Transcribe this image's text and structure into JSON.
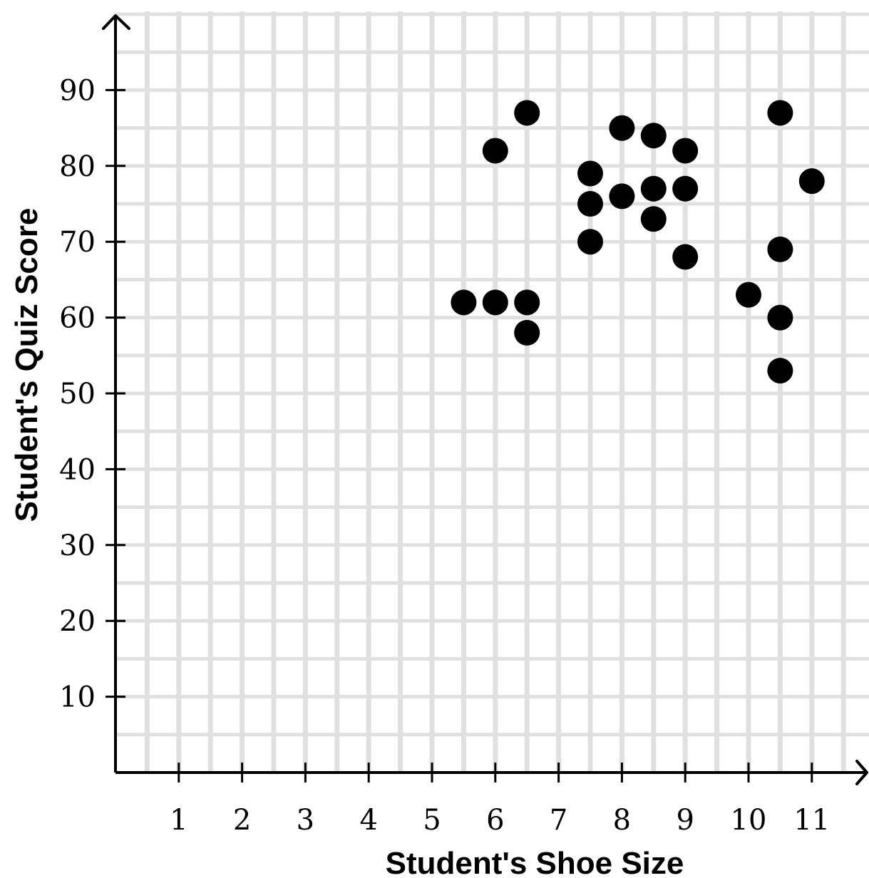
{
  "chart_data": {
    "type": "scatter",
    "title": "",
    "xlabel": "Student's Shoe Size",
    "ylabel": "Student's Quiz Score",
    "xlim": [
      0,
      11.5
    ],
    "ylim": [
      0,
      99
    ],
    "x_ticks": [
      1,
      2,
      3,
      4,
      5,
      6,
      7,
      8,
      9,
      10,
      11
    ],
    "y_ticks": [
      10,
      20,
      30,
      40,
      50,
      60,
      70,
      80,
      90
    ],
    "grid": true,
    "points": [
      {
        "x": 5.5,
        "y": 62
      },
      {
        "x": 6,
        "y": 62
      },
      {
        "x": 6,
        "y": 82
      },
      {
        "x": 6.5,
        "y": 62
      },
      {
        "x": 6.5,
        "y": 58
      },
      {
        "x": 6.5,
        "y": 87
      },
      {
        "x": 7.5,
        "y": 79
      },
      {
        "x": 7.5,
        "y": 75
      },
      {
        "x": 7.5,
        "y": 70
      },
      {
        "x": 8,
        "y": 85
      },
      {
        "x": 8,
        "y": 76
      },
      {
        "x": 8.5,
        "y": 84
      },
      {
        "x": 8.5,
        "y": 77
      },
      {
        "x": 8.5,
        "y": 73
      },
      {
        "x": 9,
        "y": 82
      },
      {
        "x": 9,
        "y": 77
      },
      {
        "x": 9,
        "y": 68
      },
      {
        "x": 10,
        "y": 63
      },
      {
        "x": 10.5,
        "y": 87
      },
      {
        "x": 10.5,
        "y": 69
      },
      {
        "x": 10.5,
        "y": 60
      },
      {
        "x": 10.5,
        "y": 53
      },
      {
        "x": 11,
        "y": 78
      }
    ],
    "colors": {
      "point": "#000000",
      "grid": "#e0e0e0",
      "axis": "#000000"
    }
  }
}
